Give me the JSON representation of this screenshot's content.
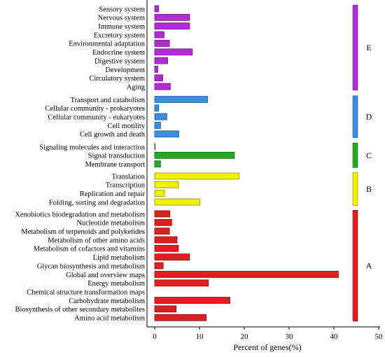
{
  "chart_data": {
    "type": "bar",
    "orientation": "horizontal",
    "xlabel": "Percent of genes(%)",
    "xlim": [
      0,
      50
    ],
    "xticks": [
      0,
      10,
      20,
      30,
      40,
      50
    ],
    "grid": false,
    "groups": [
      {
        "id": "E",
        "label": "E",
        "color": "#b22bd6",
        "items": [
          {
            "label": "Sensory system",
            "value": 0.9
          },
          {
            "label": "Nervous system",
            "value": 7.8
          },
          {
            "label": "Immune system",
            "value": 7.8
          },
          {
            "label": "Excretory system",
            "value": 2.1
          },
          {
            "label": "Environmental adaptation",
            "value": 3.3
          },
          {
            "label": "Endocrine system",
            "value": 8.4
          },
          {
            "label": "Digestive system",
            "value": 2.9
          },
          {
            "label": "Development",
            "value": 0.7
          },
          {
            "label": "Circulatory system",
            "value": 1.8
          },
          {
            "label": "Aging",
            "value": 3.5
          }
        ]
      },
      {
        "id": "D",
        "label": "D",
        "color": "#3a8ee6",
        "items": [
          {
            "label": "Transport and catabolism",
            "value": 11.8
          },
          {
            "label": "Cellular community - prokaryotes",
            "value": 0.9
          },
          {
            "label": "Cellular community - eukaryotes",
            "value": 2.7
          },
          {
            "label": "Cell motility",
            "value": 1.3
          },
          {
            "label": "Cell growth and death",
            "value": 5.4
          }
        ]
      },
      {
        "id": "C",
        "label": "C",
        "color": "#22aa22",
        "items": [
          {
            "label": "Signaling molecules and interaction",
            "value": 0.1
          },
          {
            "label": "Signal transduction",
            "value": 17.8
          },
          {
            "label": "Membrane transport",
            "value": 1.3
          }
        ]
      },
      {
        "id": "B",
        "label": "B",
        "color": "#f0f000",
        "items": [
          {
            "label": "Translation",
            "value": 18.8
          },
          {
            "label": "Transcription",
            "value": 5.3
          },
          {
            "label": "Replication and repair",
            "value": 2.2
          },
          {
            "label": "Folding, sorting and degradation",
            "value": 10.1
          }
        ]
      },
      {
        "id": "A",
        "label": "A",
        "color": "#dd1f1f",
        "items": [
          {
            "label": "Xenobiotics biodegradation and metabolism",
            "value": 3.4
          },
          {
            "label": "Nucleotide metabolism",
            "value": 3.8
          },
          {
            "label": "Metabolism of terpenoids and polyketides",
            "value": 3.3
          },
          {
            "label": "Metabolism of other amino acids",
            "value": 5.0
          },
          {
            "label": "Metabolism of cofactors and vitamins",
            "value": 5.3
          },
          {
            "label": "Lipid metabolism",
            "value": 7.8
          },
          {
            "label": "Glycan biosynthesis and metabolism",
            "value": 1.9
          },
          {
            "label": "Global and overview maps",
            "value": 41.0
          },
          {
            "label": "Energy metabolism",
            "value": 12.0
          },
          {
            "label": "Chemical structure transformation maps",
            "value": 0.0
          },
          {
            "label": "Carbohydrate metabolism",
            "value": 16.8
          },
          {
            "label": "Biosynthesis of other secondary metabolites",
            "value": 4.8
          },
          {
            "label": "Amino acid metabolism",
            "value": 11.5
          }
        ]
      }
    ]
  }
}
